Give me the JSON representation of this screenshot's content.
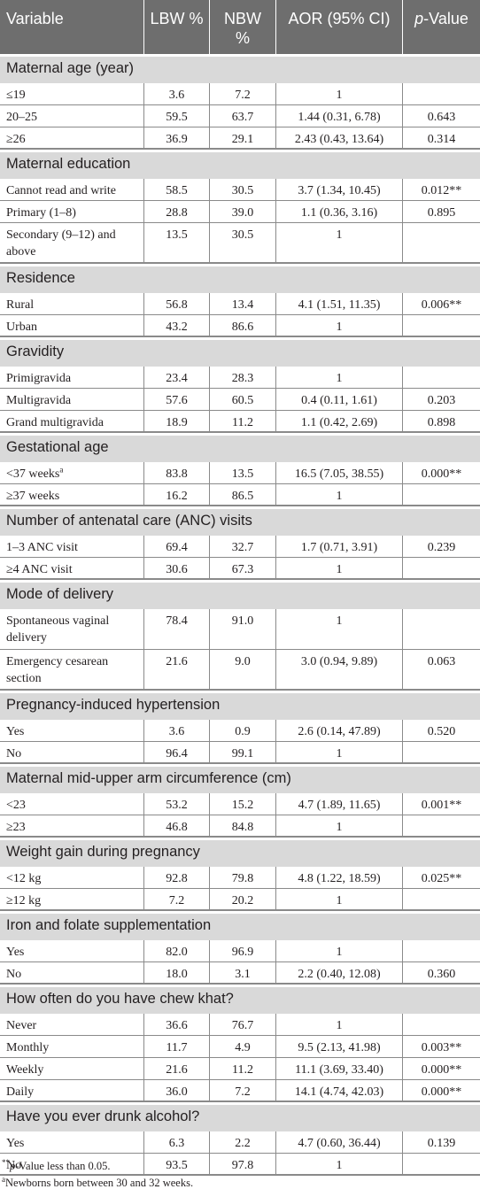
{
  "header": {
    "variable": "Variable",
    "lbw": "LBW %",
    "nbw": "NBW %",
    "aor": "AOR (95% CI)",
    "p_italic": "p",
    "p_rest": "-Value"
  },
  "groups": [
    {
      "title": "Maternal age (year)",
      "rows": [
        {
          "label": "≤19",
          "lbw": "3.6",
          "nbw": "7.2",
          "aor": "1",
          "p": ""
        },
        {
          "label": "20–25",
          "lbw": "59.5",
          "nbw": "63.7",
          "aor": "1.44 (0.31, 6.78)",
          "p": "0.643"
        },
        {
          "label": "≥26",
          "lbw": "36.9",
          "nbw": "29.1",
          "aor": "2.43 (0.43, 13.64)",
          "p": "0.314"
        }
      ]
    },
    {
      "title": "Maternal education",
      "rows": [
        {
          "label": "Cannot read and write",
          "lbw": "58.5",
          "nbw": "30.5",
          "aor": "3.7 (1.34, 10.45)",
          "p": "0.012**"
        },
        {
          "label": "Primary (1–8)",
          "lbw": "28.8",
          "nbw": "39.0",
          "aor": "1.1 (0.36, 3.16)",
          "p": "0.895"
        },
        {
          "label": "Secondary (9–12) and above",
          "lbw": "13.5",
          "nbw": "30.5",
          "aor": "1",
          "p": "",
          "tall": true
        }
      ]
    },
    {
      "title": "Residence",
      "rows": [
        {
          "label": "Rural",
          "lbw": "56.8",
          "nbw": "13.4",
          "aor": "4.1 (1.51, 11.35)",
          "p": "0.006**"
        },
        {
          "label": "Urban",
          "lbw": "43.2",
          "nbw": "86.6",
          "aor": "1",
          "p": ""
        }
      ]
    },
    {
      "title": "Gravidity",
      "rows": [
        {
          "label": "Primigravida",
          "lbw": "23.4",
          "nbw": "28.3",
          "aor": "1",
          "p": ""
        },
        {
          "label": "Multigravida",
          "lbw": "57.6",
          "nbw": "60.5",
          "aor": "0.4 (0.11, 1.61)",
          "p": "0.203"
        },
        {
          "label": "Grand multigravida",
          "lbw": "18.9",
          "nbw": "11.2",
          "aor": "1.1 (0.42, 2.69)",
          "p": "0.898"
        }
      ]
    },
    {
      "title": "Gestational age",
      "rows": [
        {
          "label": "<37 weeks",
          "sup": "a",
          "lbw": "83.8",
          "nbw": "13.5",
          "aor": "16.5 (7.05, 38.55)",
          "p": "0.000**"
        },
        {
          "label": "≥37 weeks",
          "lbw": "16.2",
          "nbw": "86.5",
          "aor": "1",
          "p": ""
        }
      ]
    },
    {
      "title": "Number of antenatal care (ANC) visits",
      "rows": [
        {
          "label": "1–3 ANC visit",
          "lbw": "69.4",
          "nbw": "32.7",
          "aor": "1.7 (0.71, 3.91)",
          "p": "0.239"
        },
        {
          "label": "≥4 ANC visit",
          "lbw": "30.6",
          "nbw": "67.3",
          "aor": "1",
          "p": ""
        }
      ]
    },
    {
      "title": "Mode of delivery",
      "rows": [
        {
          "label": "Spontaneous vaginal delivery",
          "lbw": "78.4",
          "nbw": "91.0",
          "aor": "1",
          "p": "",
          "tall": true
        },
        {
          "label": "Emergency cesarean section",
          "lbw": "21.6",
          "nbw": "9.0",
          "aor": "3.0 (0.94, 9.89)",
          "p": "0.063",
          "tall": true
        }
      ]
    },
    {
      "title": "Pregnancy-induced hypertension",
      "rows": [
        {
          "label": "Yes",
          "lbw": "3.6",
          "nbw": "0.9",
          "aor": "2.6 (0.14, 47.89)",
          "p": "0.520"
        },
        {
          "label": "No",
          "lbw": "96.4",
          "nbw": "99.1",
          "aor": "1",
          "p": ""
        }
      ]
    },
    {
      "title": "Maternal mid-upper arm circumference (cm)",
      "rows": [
        {
          "label": "<23",
          "lbw": "53.2",
          "nbw": "15.2",
          "aor": "4.7 (1.89, 11.65)",
          "p": "0.001**"
        },
        {
          "label": "≥23",
          "lbw": "46.8",
          "nbw": "84.8",
          "aor": "1",
          "p": ""
        }
      ]
    },
    {
      "title": "Weight gain during pregnancy",
      "rows": [
        {
          "label": "<12 kg",
          "lbw": "92.8",
          "nbw": "79.8",
          "aor": "4.8 (1.22, 18.59)",
          "p": "0.025**"
        },
        {
          "label": "≥12 kg",
          "lbw": "7.2",
          "nbw": "20.2",
          "aor": "1",
          "p": ""
        }
      ]
    },
    {
      "title": "Iron and folate supplementation",
      "rows": [
        {
          "label": "Yes",
          "lbw": "82.0",
          "nbw": "96.9",
          "aor": "1",
          "p": ""
        },
        {
          "label": "No",
          "lbw": "18.0",
          "nbw": "3.1",
          "aor": "2.2 (0.40, 12.08)",
          "p": "0.360"
        }
      ]
    },
    {
      "title": "How often do you have chew khat?",
      "rows": [
        {
          "label": "Never",
          "lbw": "36.6",
          "nbw": "76.7",
          "aor": "1",
          "p": ""
        },
        {
          "label": "Monthly",
          "lbw": "11.7",
          "nbw": "4.9",
          "aor": "9.5 (2.13, 41.98)",
          "p": "0.003**"
        },
        {
          "label": "Weekly",
          "lbw": "21.6",
          "nbw": "11.2",
          "aor": "11.1 (3.69, 33.40)",
          "p": "0.000**"
        },
        {
          "label": "Daily",
          "lbw": "36.0",
          "nbw": "7.2",
          "aor": "14.1 (4.74, 42.03)",
          "p": "0.000**"
        }
      ]
    },
    {
      "title": "Have you ever drunk alcohol?",
      "rows": [
        {
          "label": "Yes",
          "lbw": "6.3",
          "nbw": "2.2",
          "aor": "4.7 (0.60, 36.44)",
          "p": "0.139"
        },
        {
          "label": "No",
          "lbw": "93.5",
          "nbw": "97.8",
          "aor": "1",
          "p": ""
        }
      ]
    }
  ],
  "footnotes": {
    "note1_marker": "**",
    "note1_italic": "p",
    "note1_text": "-Value less than 0.05.",
    "note2_marker": "a",
    "note2_text": "Newborns born between 30 and 32 weeks."
  },
  "colors": {
    "header_bg": "#6e6e6e",
    "section_bg": "#d9d9d9",
    "text": "#231f20"
  }
}
